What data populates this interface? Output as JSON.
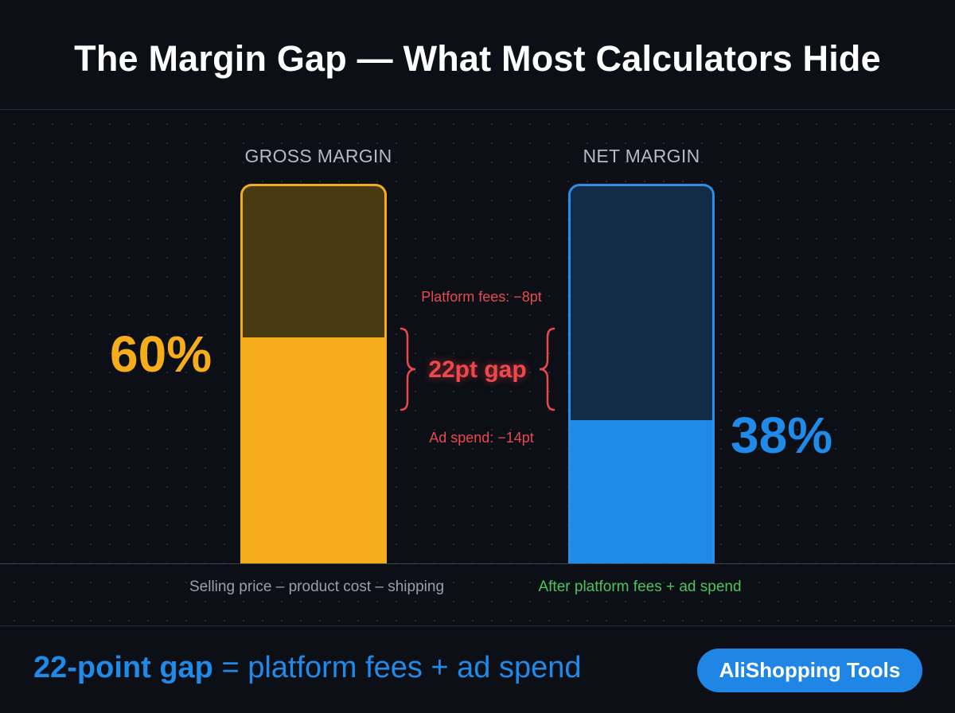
{
  "title": "The Margin Gap — What Most Calculators Hide",
  "chart_data": {
    "type": "bar",
    "ylim": [
      0,
      100
    ],
    "bars": [
      {
        "label": "GROSS MARGIN",
        "value": 60,
        "value_label": "60%",
        "description": "Selling price – product cost – shipping",
        "color": "#f5ad1b"
      },
      {
        "label": "NET MARGIN",
        "value": 38,
        "value_label": "38%",
        "description": "After platform fees + ad spend",
        "color": "#1f8ae8"
      }
    ],
    "annotations": {
      "platform_fees": "Platform fees: −8pt",
      "gap": "22pt gap",
      "ad_spend": "Ad spend: −14pt"
    }
  },
  "footer": {
    "highlight": "22-point gap",
    "rest": " = platform fees + ad spend"
  },
  "brand": "AliShopping Tools"
}
